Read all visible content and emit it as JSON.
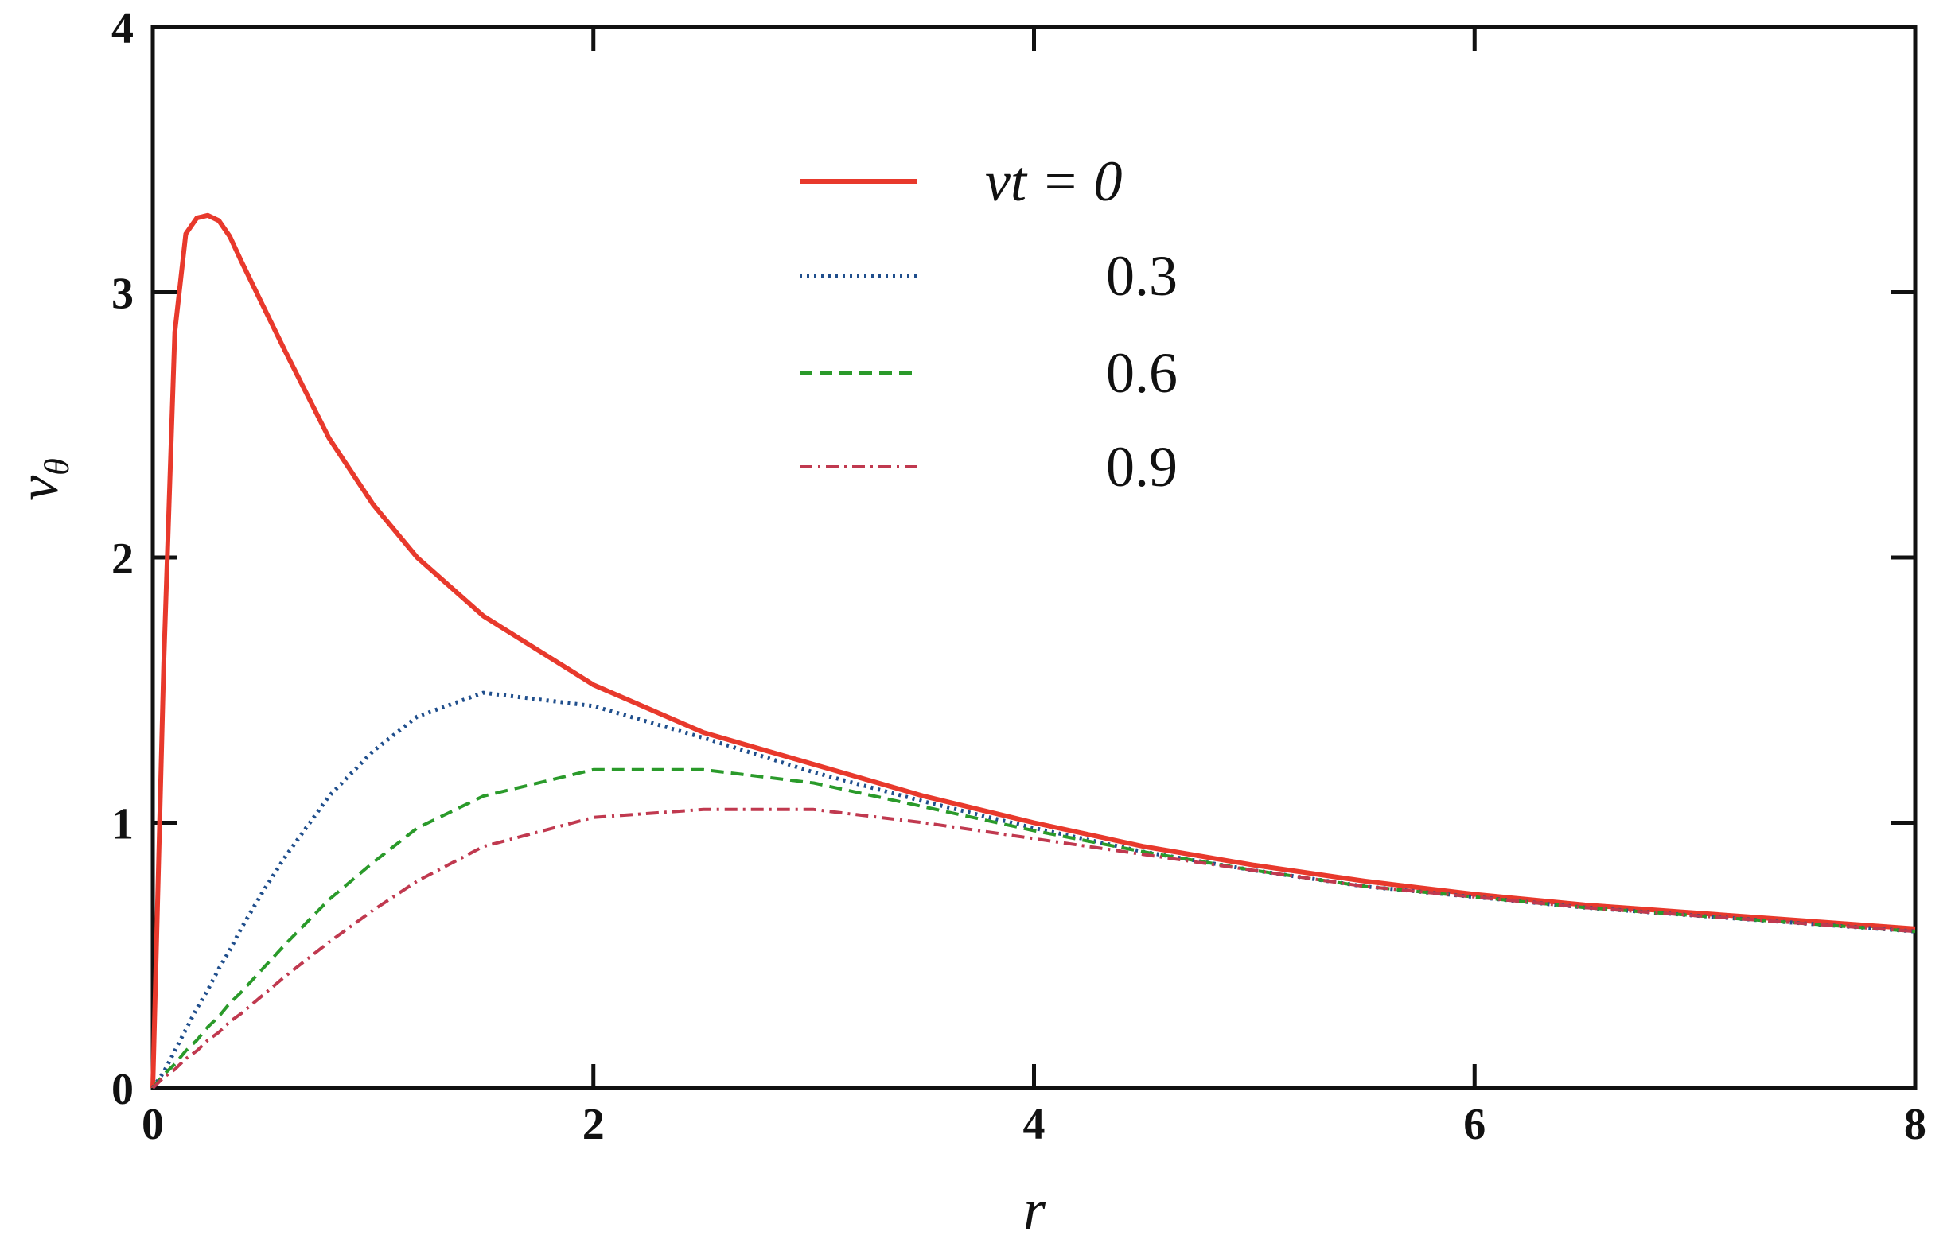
{
  "chart_data": {
    "type": "line",
    "xlabel": "r",
    "ylabel_main": "v",
    "ylabel_sub": "θ",
    "xlim": [
      0,
      8
    ],
    "ylim": [
      0,
      4
    ],
    "xticks": [
      "0",
      "2",
      "4",
      "6",
      "8"
    ],
    "yticks": [
      "0",
      "1",
      "2",
      "3",
      "4"
    ],
    "grid": false,
    "legend_placement": "top-center",
    "legend_prefix": "νt = ",
    "series": [
      {
        "name": "0",
        "nut": 0,
        "color": "#e8392c",
        "style": "solid"
      },
      {
        "name": "0.3",
        "nut": 0.3,
        "color": "#1f4e8c",
        "style": "dotted"
      },
      {
        "name": "0.6",
        "nut": 0.6,
        "color": "#2a9a2a",
        "style": "dashed"
      },
      {
        "name": "0.9",
        "nut": 0.9,
        "color": "#c0394f",
        "style": "dashdot"
      }
    ],
    "data": {
      "r": [
        0,
        0.05,
        0.1,
        0.15,
        0.2,
        0.25,
        0.3,
        0.35,
        0.4,
        0.5,
        0.6,
        0.8,
        1.0,
        1.2,
        1.5,
        2.0,
        2.5,
        3.0,
        3.5,
        4.0,
        4.5,
        5.0,
        5.5,
        6.0,
        6.5,
        7.0,
        7.5,
        8.0
      ],
      "v0": [
        0,
        1.6,
        2.85,
        3.22,
        3.28,
        3.29,
        3.27,
        3.21,
        3.12,
        2.95,
        2.78,
        2.45,
        2.2,
        2.0,
        1.78,
        1.52,
        1.34,
        1.22,
        1.1,
        1.0,
        0.91,
        0.84,
        0.78,
        0.73,
        0.69,
        0.66,
        0.63,
        0.6
      ],
      "v03": [
        0,
        0.06,
        0.14,
        0.22,
        0.3,
        0.37,
        0.45,
        0.52,
        0.6,
        0.74,
        0.87,
        1.1,
        1.27,
        1.4,
        1.49,
        1.44,
        1.32,
        1.19,
        1.08,
        0.98,
        0.89,
        0.82,
        0.76,
        0.72,
        0.68,
        0.65,
        0.62,
        0.59
      ],
      "v06": [
        0,
        0.05,
        0.09,
        0.14,
        0.18,
        0.23,
        0.27,
        0.32,
        0.36,
        0.45,
        0.54,
        0.71,
        0.85,
        0.98,
        1.1,
        1.2,
        1.2,
        1.15,
        1.06,
        0.97,
        0.89,
        0.82,
        0.76,
        0.72,
        0.68,
        0.65,
        0.62,
        0.59
      ],
      "v09": [
        0,
        0.04,
        0.07,
        0.11,
        0.14,
        0.18,
        0.21,
        0.25,
        0.28,
        0.35,
        0.42,
        0.55,
        0.67,
        0.78,
        0.91,
        1.02,
        1.05,
        1.05,
        1.0,
        0.94,
        0.88,
        0.82,
        0.76,
        0.72,
        0.68,
        0.65,
        0.62,
        0.59
      ]
    }
  }
}
